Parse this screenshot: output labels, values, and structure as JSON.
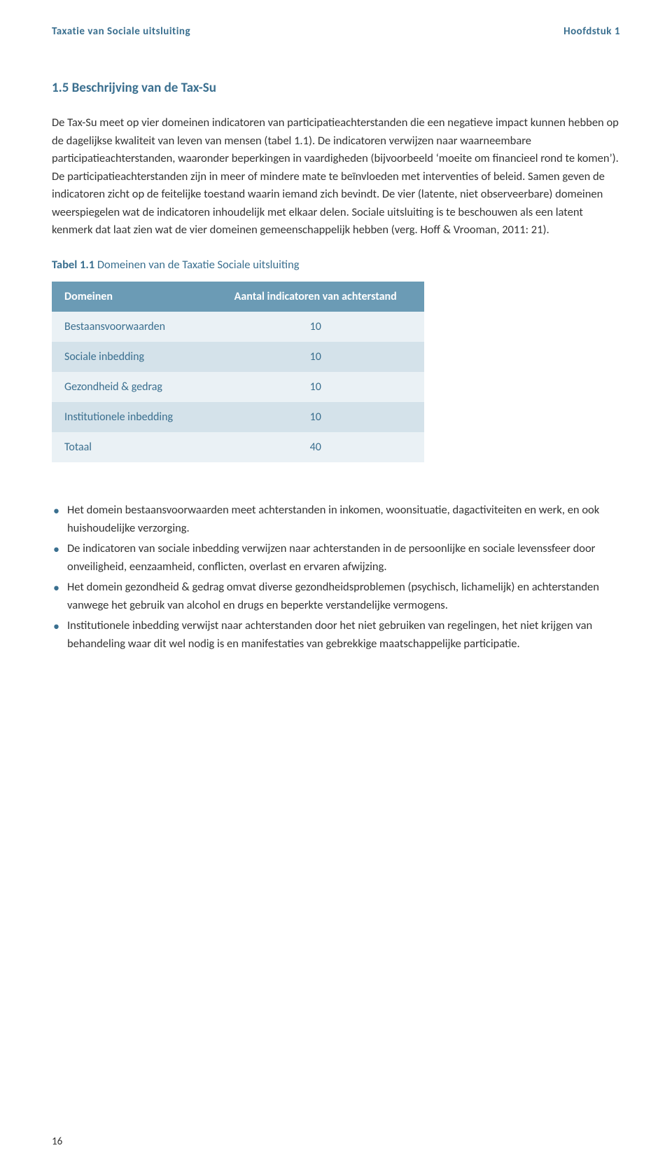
{
  "colors": {
    "accent": "#3a6f8f",
    "table_header_bg": "#6b9bb5",
    "row_even_bg": "#eaf1f5",
    "row_odd_bg": "#d4e2ea",
    "text": "#333333",
    "body_text": "#333333",
    "white": "#ffffff"
  },
  "header": {
    "left": "Taxatie van Sociale uitsluiting",
    "right": "Hoofdstuk 1"
  },
  "section": {
    "title": "1.5 Beschrijving van de Tax-Su",
    "paragraph": "De Tax-Su meet op vier domeinen indicatoren van participatieachterstanden die een negatieve impact kunnen hebben op de dagelijkse kwaliteit van leven van mensen (tabel 1.1). De indicatoren verwijzen naar waarneembare participatieachterstanden, waaronder beperkingen in vaardigheden (bijvoorbeeld ‘moeite om financieel rond te komen’). De participatieachterstanden zijn in meer of mindere mate te beïnvloeden met interventies of beleid. Samen geven de indicatoren zicht op de feitelijke toestand waarin iemand zich bevindt. De vier (latente, niet observeerbare) domeinen weerspiegelen wat de indicatoren inhoudelijk met elkaar delen. Sociale uitsluiting is te beschouwen als een latent kenmerk dat laat zien wat de vier domeinen gemeenschappelijk hebben (verg. Hoff & Vrooman, 2011: 21)."
  },
  "table": {
    "caption_bold": "Tabel 1.1",
    "caption_rest": " Domeinen van de Taxatie Sociale uitsluiting",
    "columns": [
      "Domeinen",
      "Aantal indicatoren van achterstand"
    ],
    "rows": [
      {
        "label": "Bestaansvoorwaarden",
        "value": "10"
      },
      {
        "label": "Sociale inbedding",
        "value": "10"
      },
      {
        "label": "Gezondheid & gedrag",
        "value": "10"
      },
      {
        "label": "Institutionele inbedding",
        "value": "10"
      },
      {
        "label": "Totaal",
        "value": "40"
      }
    ]
  },
  "bullets": [
    "Het domein bestaansvoorwaarden meet achterstanden in inkomen, woonsituatie, dagactiviteiten en werk, en ook huishoudelijke verzorging.",
    "De indicatoren van sociale inbedding verwijzen naar achterstanden in de persoonlijke en sociale levenssfeer door onveiligheid, eenzaamheid, conflicten, overlast en ervaren afwijzing.",
    "Het domein gezondheid & gedrag omvat diverse gezondheidsproblemen (psychisch, lichamelijk) en achterstanden vanwege het gebruik van alcohol en drugs en beperkte verstandelijke vermogens.",
    "Institutionele inbedding verwijst naar achterstanden door het niet gebruiken van regelingen, het niet krijgen van behandeling waar dit wel nodig is en manifestaties van gebrekkige maatschappelijke participatie."
  ],
  "page_number": "16"
}
